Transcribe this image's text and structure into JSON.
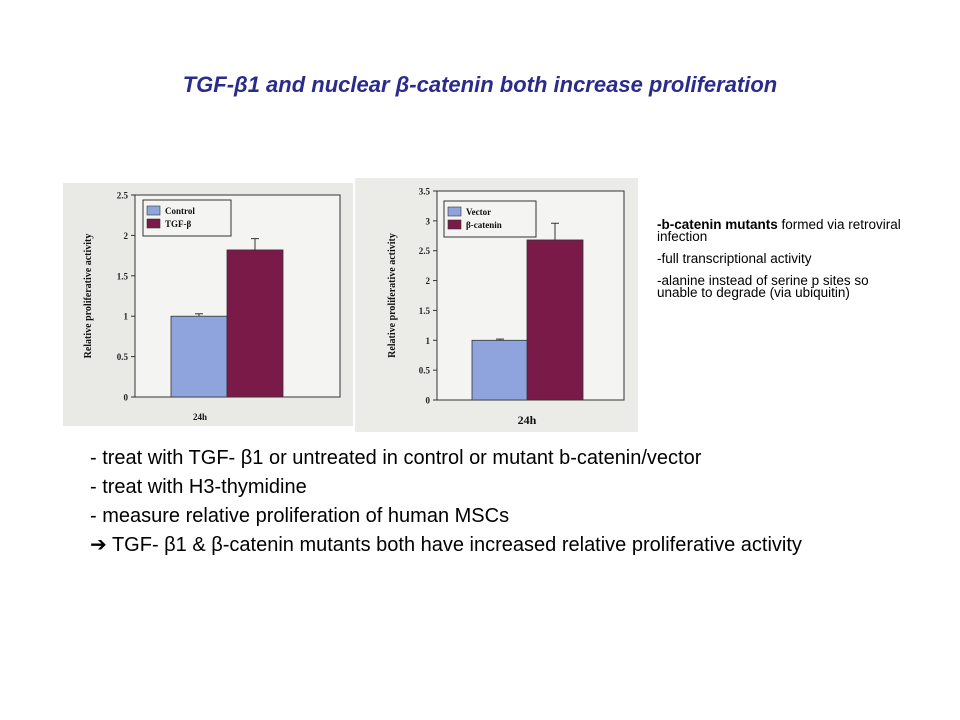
{
  "title": "TGF-β1 and nuclear β-catenin both increase proliferation",
  "notes": {
    "n1_bold": "-b-catenin mutants",
    "n1_rest": " formed via retroviral infection",
    "n2": "-full transcriptional activity",
    "n3": "-alanine instead of serine p sites so unable to degrade (via ubiquitin)"
  },
  "bullets": [
    "- treat with TGF- β1 or untreated in control or  mutant b-catenin/vector",
    "- treat with H3-thymidine",
    "- measure relative proliferation of human MSCs",
    "➔ TGF- β1 & β-catenin mutants both have increased relative proliferative activity"
  ],
  "chart_data": [
    {
      "type": "bar",
      "categories": [
        "24h"
      ],
      "series": [
        {
          "name": "Control",
          "values": [
            1.0
          ],
          "error": [
            0.03
          ],
          "color": "#8fa4dc"
        },
        {
          "name": "TGF-β",
          "values": [
            1.82
          ],
          "error": [
            0.14
          ],
          "color": "#7a1a48"
        }
      ],
      "ylabel": "Relative proliferative activity",
      "ylim": [
        0,
        2.5
      ],
      "yticks": [
        "0",
        "0.5",
        "1",
        "1.5",
        "2",
        "2.5"
      ],
      "legend": "top-left"
    },
    {
      "type": "bar",
      "categories": [
        "24h"
      ],
      "series": [
        {
          "name": "Vector",
          "values": [
            1.0
          ],
          "error": [
            0.02
          ],
          "color": "#8fa4dc"
        },
        {
          "name": "β-catenin",
          "values": [
            2.68
          ],
          "error": [
            0.28
          ],
          "color": "#7a1a48"
        }
      ],
      "ylabel": "Relative proliferative activity",
      "ylim": [
        0,
        3.5
      ],
      "yticks": [
        "0",
        "0.5",
        "1",
        "1.5",
        "2",
        "2.5",
        "3",
        "3.5"
      ],
      "legend": "top-left"
    }
  ]
}
